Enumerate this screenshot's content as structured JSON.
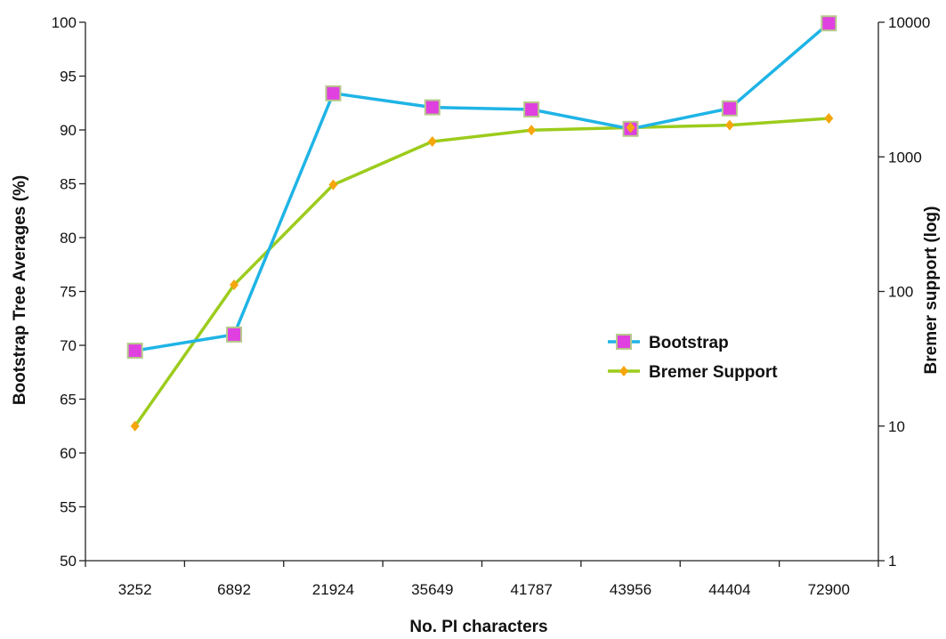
{
  "chart_data": {
    "type": "line",
    "categories": [
      "3252",
      "6892",
      "21924",
      "35649",
      "41787",
      "43956",
      "44404",
      "72900"
    ],
    "xlabel": "No. PI characters",
    "ylabel": "Bootstrap Tree Averages (%)",
    "y2label": "Bremer support (log)",
    "ylim": [
      50,
      100
    ],
    "y_ticks": [
      "50",
      "55",
      "60",
      "65",
      "70",
      "75",
      "80",
      "85",
      "90",
      "95",
      "100"
    ],
    "y2lim": [
      1,
      10000
    ],
    "y2_scale": "log",
    "y2_ticks": [
      "1",
      "10",
      "100",
      "1000",
      "10000"
    ],
    "grid": false,
    "legend_position": "center-right",
    "series": [
      {
        "name": "Bootstrap",
        "axis": "left",
        "color": "#1fb4e6",
        "marker": "square",
        "marker_color": "#e040e0",
        "values": [
          69.5,
          71.0,
          93.4,
          92.1,
          91.9,
          90.1,
          92.0,
          99.9
        ]
      },
      {
        "name": "Bremer Support",
        "axis": "right",
        "color": "#9ccc1c",
        "marker": "diamond",
        "marker_color": "#f5a60c",
        "values": [
          10,
          112,
          620,
          1300,
          1580,
          1650,
          1720,
          1930
        ]
      }
    ]
  }
}
